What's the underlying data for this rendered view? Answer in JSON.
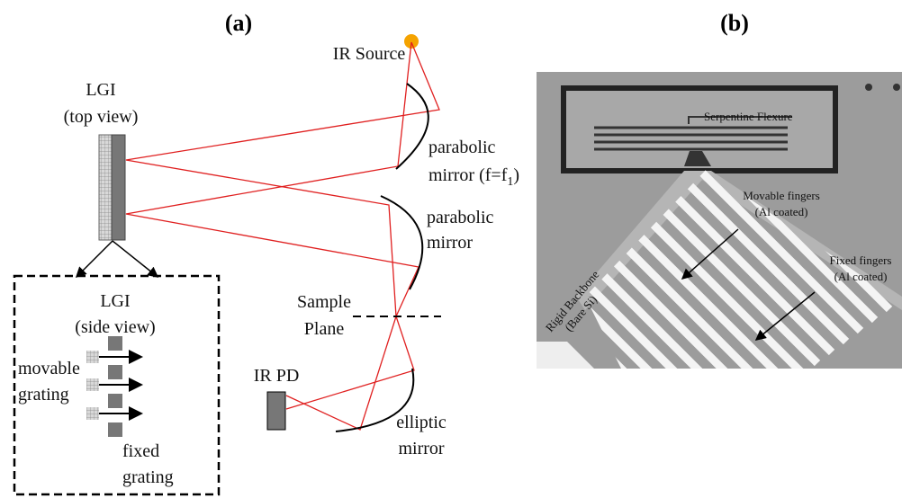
{
  "panel_a": {
    "label": "(a)",
    "ir_source": "IR Source",
    "lgi_top": {
      "title": "LGI",
      "subtitle": "(top view)"
    },
    "mirror_1": {
      "line1": "parabolic",
      "line2": {
        "text": "mirror (f=f",
        "sub": "1",
        "tail": ")"
      }
    },
    "mirror_2": {
      "line1": "parabolic",
      "line2": "mirror"
    },
    "sample_plane": {
      "line1": "Sample",
      "line2": "Plane"
    },
    "detector": "IR PD",
    "mirror_3": {
      "line1": "elliptic",
      "line2": "mirror"
    },
    "lgi_side": {
      "title": "LGI",
      "subtitle": "(side view)",
      "movable": {
        "line1": "movable",
        "line2": "grating"
      },
      "fixed": {
        "line1": "fixed",
        "line2": "grating"
      }
    }
  },
  "panel_b": {
    "label": "(b)",
    "serpentine": "Serpentine Flexure",
    "movable_fingers": {
      "line1": "Movable fingers",
      "line2": "(Al coated)"
    },
    "fixed_fingers": {
      "line1": "Fixed fingers",
      "line2": "(Al coated)"
    },
    "backbone": {
      "line1": "Rigid Backbone",
      "line2": "(Bare Si)"
    }
  }
}
